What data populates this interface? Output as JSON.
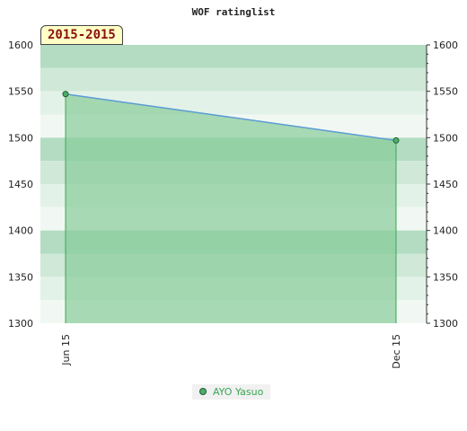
{
  "chart_data": {
    "type": "area",
    "title": "WOF ratinglist",
    "period_label": "2015-2015",
    "x": [
      "Jun 15",
      "Dec 15"
    ],
    "series": [
      {
        "name": "AYO Yasuo",
        "values": [
          1547,
          1497
        ]
      }
    ],
    "ylim": [
      1300,
      1600
    ],
    "yticks": [
      1300,
      1350,
      1400,
      1450,
      1500,
      1550,
      1600
    ],
    "grid": true,
    "legend_position": "bottom-center",
    "colors": {
      "area_fill": "#88cc99",
      "line": "#5b9bd5",
      "marker_fill": "#4caf6a",
      "marker_stroke": "#1e5e2e",
      "band_dark": "#b3dcc2",
      "band_mid": "#cfe8d7",
      "band_light": "#e3f2e8",
      "band_lightest": "#f1f8f3",
      "legend_text": "#3aa655"
    }
  }
}
